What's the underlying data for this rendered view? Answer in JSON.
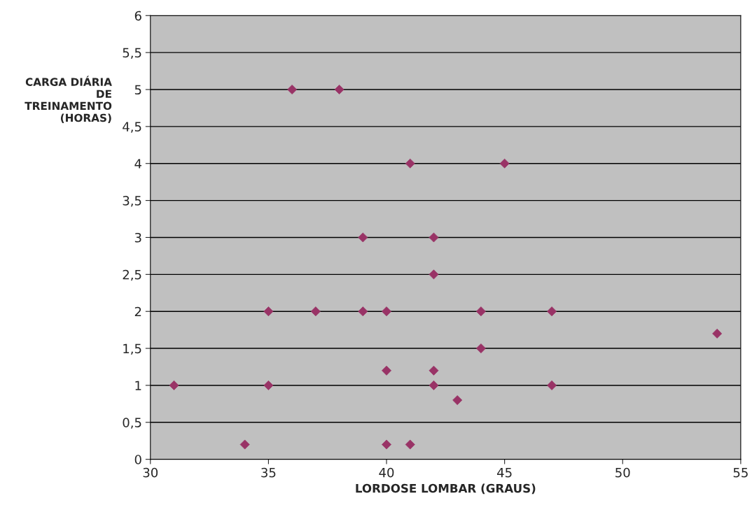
{
  "chart_data": {
    "type": "scatter",
    "xlabel": "LORDOSE LOMBAR (GRAUS)",
    "ylabel": "CARGA DIÁRIA\nDE\nTREINAMENTO\n(HORAS)",
    "x": [
      36,
      38,
      41,
      45,
      39,
      42,
      42,
      35,
      37,
      39,
      40,
      44,
      47,
      54,
      44,
      40,
      42,
      31,
      35,
      42,
      47,
      43,
      34,
      40,
      41
    ],
    "series": [
      {
        "color": "#993366",
        "values": [
          5,
          5,
          4,
          4,
          3,
          3,
          2.5,
          2,
          2,
          2,
          2,
          2,
          2,
          1.7,
          1.5,
          1.2,
          1.2,
          1,
          1,
          1,
          1,
          0.8,
          0.2,
          0.2,
          0.2
        ]
      }
    ],
    "xlim": [
      30,
      55
    ],
    "xticks": [
      30,
      35,
      40,
      45,
      50,
      55
    ],
    "ylim": [
      0,
      6
    ],
    "yticks": [
      0,
      {
        "value": 0.5,
        "label": "0,5"
      },
      1,
      {
        "value": 1.5,
        "label": "1,5"
      },
      2,
      {
        "value": 2.5,
        "label": "2,5"
      },
      3,
      {
        "value": 3.5,
        "label": "3,5"
      },
      4,
      {
        "value": 4.5,
        "label": "4,5"
      },
      5,
      {
        "value": 5.5,
        "label": "5,5"
      },
      6
    ],
    "grid": "y",
    "marker": "diamond"
  }
}
